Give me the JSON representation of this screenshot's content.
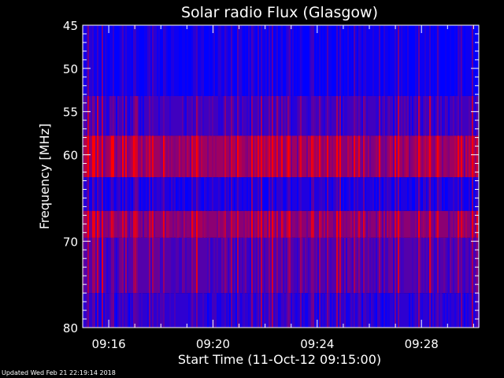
{
  "chart_data": {
    "type": "heatmap",
    "title": "Solar radio Flux (Glasgow)",
    "xlabel": "Start Time (11-Oct-12 09:15:00)",
    "ylabel": "Frequency [MHz]",
    "x_tick_labels": [
      "09:16",
      "09:20",
      "09:24",
      "09:28"
    ],
    "x_ticks_min": [
      16,
      20,
      24,
      28
    ],
    "xlim_min": [
      15.0,
      30.2
    ],
    "y_tick_labels": [
      "45",
      "50",
      "55",
      "60",
      "70",
      "80"
    ],
    "y_ticks_mhz": [
      45,
      50,
      55,
      60,
      70,
      80
    ],
    "ylim_mhz": [
      45,
      80
    ],
    "y_axis_inverted": true,
    "bands": [
      {
        "from_mhz": 45.0,
        "to_mhz": 53.2,
        "level": 0.05
      },
      {
        "from_mhz": 53.2,
        "to_mhz": 57.8,
        "level": 0.25
      },
      {
        "from_mhz": 57.8,
        "to_mhz": 62.6,
        "level": 0.62
      },
      {
        "from_mhz": 62.6,
        "to_mhz": 66.5,
        "level": 0.12
      },
      {
        "from_mhz": 66.5,
        "to_mhz": 69.6,
        "level": 0.55
      },
      {
        "from_mhz": 69.6,
        "to_mhz": 76.0,
        "level": 0.33
      },
      {
        "from_mhz": 76.0,
        "to_mhz": 80.0,
        "level": 0.18
      }
    ],
    "colors": {
      "low": "#0000ff",
      "high": "#ff0000",
      "background": "#000000",
      "text": "#ffffff"
    }
  },
  "footer": {
    "updated": "Updated Wed Feb 21 22:19:14 2018"
  }
}
